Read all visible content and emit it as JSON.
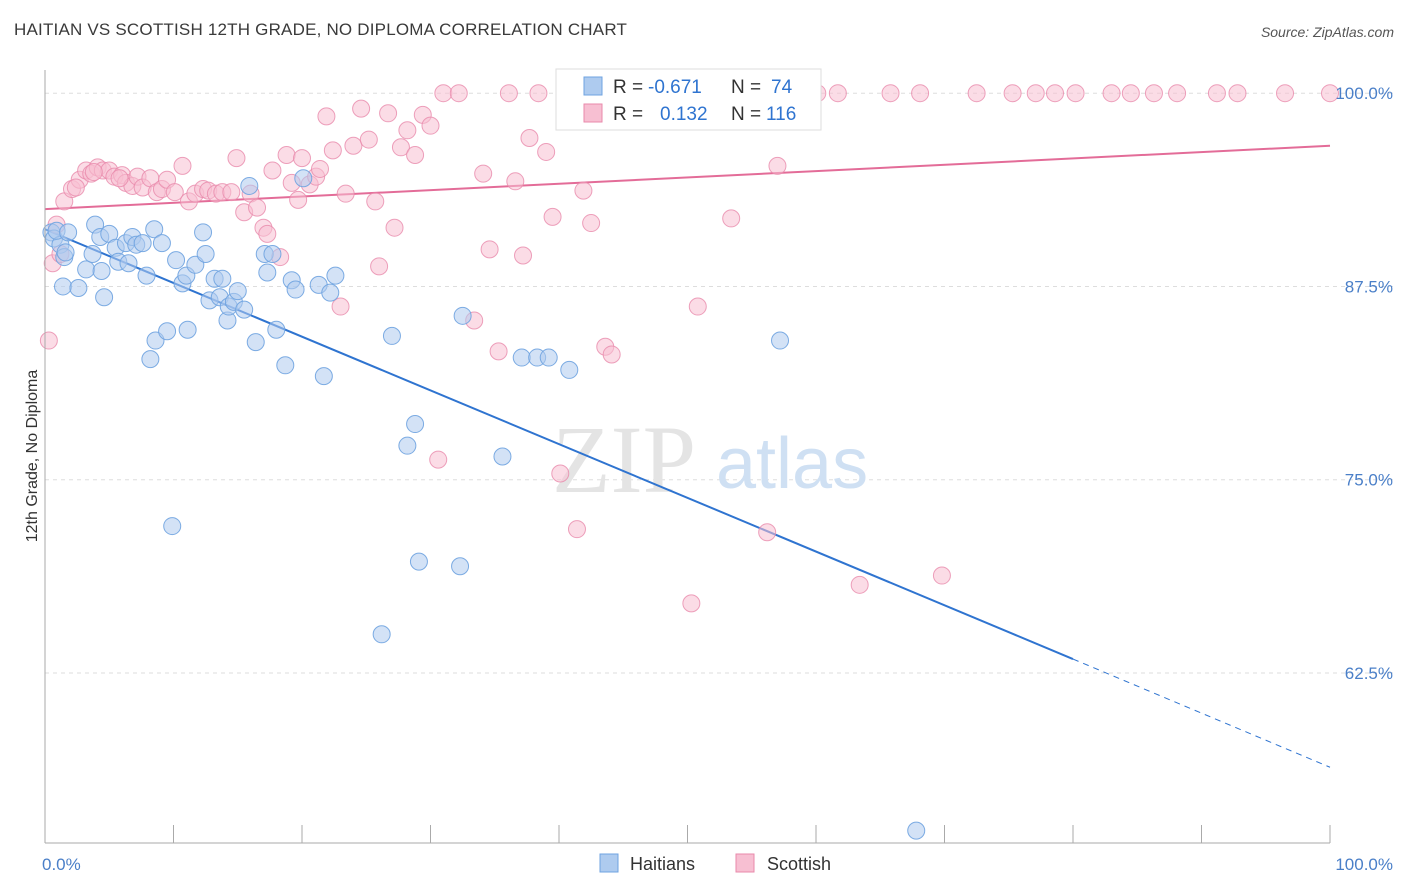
{
  "title": "HAITIAN VS SCOTTISH 12TH GRADE, NO DIPLOMA CORRELATION CHART",
  "source": "Source: ZipAtlas.com",
  "watermark": {
    "zip": "ZIP",
    "atlas": "atlas"
  },
  "colors": {
    "haitians": "#6fa3e0",
    "haitians_fill": "#aecbef",
    "haitians_line": "#2f74d0",
    "scottish": "#e98aab",
    "scottish_fill": "#f7bfd2",
    "scottish_line": "#e36c98",
    "tick": "#4a7fc8",
    "grid": "#dddddd"
  },
  "stats": {
    "haitians": {
      "r_label": "R =",
      "r_value": "-0.671",
      "n_label": "N =",
      "n_value": "74"
    },
    "scottish": {
      "r_label": "R =",
      "r_value": "0.132",
      "n_label": "N =",
      "n_value": "116"
    }
  },
  "chart_data": {
    "type": "scatter",
    "xlabel": "",
    "ylabel": "12th Grade, No Diploma",
    "xlim": [
      0,
      100
    ],
    "ylim": [
      51.5,
      101.5
    ],
    "x_tick_labels": [
      "0.0%",
      "100.0%"
    ],
    "y_ticks": [
      100.0,
      87.5,
      75.0,
      62.5
    ],
    "y_tick_labels": [
      "100.0%",
      "87.5%",
      "75.0%",
      "62.5%"
    ],
    "grid": true,
    "legend_position": "bottom",
    "series": [
      {
        "name": "Haitians",
        "trend": {
          "x0": 0.0,
          "y0": 91.2,
          "x1": 80.0,
          "y1": 63.4,
          "dashed_to_x": 100.0,
          "dashed_to_y": 56.4
        },
        "points": [
          [
            0.5,
            91.0
          ],
          [
            0.7,
            90.6
          ],
          [
            1.2,
            90.2
          ],
          [
            1.5,
            89.4
          ],
          [
            1.6,
            89.7
          ],
          [
            1.4,
            87.5
          ],
          [
            2.6,
            87.4
          ],
          [
            3.2,
            88.6
          ],
          [
            3.7,
            89.6
          ],
          [
            3.9,
            91.5
          ],
          [
            4.3,
            90.7
          ],
          [
            4.4,
            88.5
          ],
          [
            4.6,
            86.8
          ],
          [
            5.0,
            90.9
          ],
          [
            5.5,
            90.0
          ],
          [
            5.7,
            89.1
          ],
          [
            6.3,
            90.3
          ],
          [
            6.5,
            89.0
          ],
          [
            6.8,
            90.7
          ],
          [
            7.1,
            90.2
          ],
          [
            7.6,
            90.3
          ],
          [
            7.9,
            88.2
          ],
          [
            8.5,
            91.2
          ],
          [
            8.6,
            84.0
          ],
          [
            9.1,
            90.3
          ],
          [
            9.5,
            84.6
          ],
          [
            10.2,
            89.2
          ],
          [
            10.7,
            87.7
          ],
          [
            11.0,
            88.2
          ],
          [
            11.1,
            84.7
          ],
          [
            11.7,
            88.9
          ],
          [
            12.3,
            91.0
          ],
          [
            12.5,
            89.6
          ],
          [
            12.8,
            86.6
          ],
          [
            13.2,
            88.0
          ],
          [
            13.6,
            86.8
          ],
          [
            13.8,
            88.0
          ],
          [
            14.2,
            85.3
          ],
          [
            14.3,
            86.2
          ],
          [
            14.7,
            86.5
          ],
          [
            15.0,
            87.2
          ],
          [
            15.5,
            86.0
          ],
          [
            15.9,
            94.0
          ],
          [
            16.4,
            83.9
          ],
          [
            17.1,
            89.6
          ],
          [
            17.3,
            88.4
          ],
          [
            17.7,
            89.6
          ],
          [
            18.0,
            84.7
          ],
          [
            18.7,
            82.4
          ],
          [
            19.2,
            87.9
          ],
          [
            19.5,
            87.3
          ],
          [
            20.1,
            94.5
          ],
          [
            21.3,
            87.6
          ],
          [
            21.7,
            81.7
          ],
          [
            22.2,
            87.1
          ],
          [
            22.6,
            88.2
          ],
          [
            26.2,
            65.0
          ],
          [
            27.0,
            84.3
          ],
          [
            28.2,
            77.2
          ],
          [
            28.8,
            78.6
          ],
          [
            29.1,
            69.7
          ],
          [
            32.3,
            69.4
          ],
          [
            32.5,
            85.6
          ],
          [
            35.6,
            76.5
          ],
          [
            37.1,
            82.9
          ],
          [
            38.3,
            82.9
          ],
          [
            39.2,
            82.9
          ],
          [
            40.8,
            82.1
          ],
          [
            57.2,
            84.0
          ],
          [
            67.8,
            52.3
          ],
          [
            9.9,
            72.0
          ],
          [
            8.2,
            82.8
          ],
          [
            0.9,
            91.1
          ],
          [
            1.8,
            91.0
          ]
        ]
      },
      {
        "name": "Scottish",
        "trend": {
          "x0": 0.0,
          "y0": 92.5,
          "x1": 100.0,
          "y1": 96.6
        },
        "points": [
          [
            0.3,
            84.0
          ],
          [
            0.6,
            89.0
          ],
          [
            0.9,
            91.5
          ],
          [
            1.5,
            93.0
          ],
          [
            2.1,
            93.8
          ],
          [
            2.7,
            94.4
          ],
          [
            3.2,
            95.0
          ],
          [
            3.6,
            94.8
          ],
          [
            4.1,
            95.2
          ],
          [
            4.5,
            95.0
          ],
          [
            5.0,
            95.0
          ],
          [
            5.4,
            94.6
          ],
          [
            6.0,
            94.7
          ],
          [
            6.3,
            94.2
          ],
          [
            6.8,
            94.0
          ],
          [
            7.2,
            94.6
          ],
          [
            7.6,
            93.9
          ],
          [
            8.2,
            94.5
          ],
          [
            8.7,
            93.6
          ],
          [
            9.1,
            93.8
          ],
          [
            9.5,
            94.4
          ],
          [
            10.1,
            93.6
          ],
          [
            10.7,
            95.3
          ],
          [
            11.2,
            93.0
          ],
          [
            11.7,
            93.5
          ],
          [
            12.3,
            93.8
          ],
          [
            12.7,
            93.7
          ],
          [
            13.3,
            93.5
          ],
          [
            13.8,
            93.6
          ],
          [
            14.5,
            93.6
          ],
          [
            14.9,
            95.8
          ],
          [
            15.5,
            92.3
          ],
          [
            16.0,
            93.5
          ],
          [
            16.5,
            92.6
          ],
          [
            17.0,
            91.3
          ],
          [
            17.3,
            90.9
          ],
          [
            17.7,
            95.0
          ],
          [
            18.3,
            89.4
          ],
          [
            18.8,
            96.0
          ],
          [
            19.2,
            94.2
          ],
          [
            19.7,
            93.1
          ],
          [
            20.0,
            95.8
          ],
          [
            20.6,
            94.1
          ],
          [
            21.1,
            94.6
          ],
          [
            21.4,
            95.1
          ],
          [
            21.9,
            98.5
          ],
          [
            22.4,
            96.3
          ],
          [
            23.0,
            86.2
          ],
          [
            23.4,
            93.5
          ],
          [
            24.0,
            96.6
          ],
          [
            24.6,
            99.0
          ],
          [
            25.2,
            97.0
          ],
          [
            25.7,
            93.0
          ],
          [
            26.0,
            88.8
          ],
          [
            26.7,
            98.7
          ],
          [
            27.2,
            91.3
          ],
          [
            27.7,
            96.5
          ],
          [
            28.2,
            97.6
          ],
          [
            28.8,
            96.0
          ],
          [
            29.4,
            98.6
          ],
          [
            30.0,
            97.9
          ],
          [
            30.6,
            76.3
          ],
          [
            31.0,
            100.0
          ],
          [
            32.2,
            100.0
          ],
          [
            33.4,
            85.3
          ],
          [
            34.1,
            94.8
          ],
          [
            34.6,
            89.9
          ],
          [
            35.3,
            83.3
          ],
          [
            36.1,
            100.0
          ],
          [
            36.6,
            94.3
          ],
          [
            37.2,
            89.5
          ],
          [
            37.7,
            97.1
          ],
          [
            38.4,
            100.0
          ],
          [
            39.0,
            96.2
          ],
          [
            39.5,
            92.0
          ],
          [
            40.1,
            75.4
          ],
          [
            40.8,
            100.0
          ],
          [
            41.4,
            71.8
          ],
          [
            41.9,
            93.7
          ],
          [
            42.5,
            91.6
          ],
          [
            43.0,
            100.0
          ],
          [
            43.6,
            83.6
          ],
          [
            44.1,
            83.1
          ],
          [
            45.0,
            100.0
          ],
          [
            46.2,
            100.0
          ],
          [
            48.1,
            100.0
          ],
          [
            50.3,
            67.0
          ],
          [
            50.8,
            86.2
          ],
          [
            51.8,
            100.0
          ],
          [
            53.4,
            91.9
          ],
          [
            55.2,
            100.0
          ],
          [
            56.2,
            71.6
          ],
          [
            57.0,
            95.3
          ],
          [
            60.1,
            100.0
          ],
          [
            61.7,
            100.0
          ],
          [
            63.4,
            68.2
          ],
          [
            65.8,
            100.0
          ],
          [
            68.1,
            100.0
          ],
          [
            69.8,
            68.8
          ],
          [
            72.5,
            100.0
          ],
          [
            75.3,
            100.0
          ],
          [
            77.1,
            100.0
          ],
          [
            78.6,
            100.0
          ],
          [
            80.2,
            100.0
          ],
          [
            83.0,
            100.0
          ],
          [
            84.5,
            100.0
          ],
          [
            86.3,
            100.0
          ],
          [
            88.1,
            100.0
          ],
          [
            91.2,
            100.0
          ],
          [
            92.8,
            100.0
          ],
          [
            96.5,
            100.0
          ],
          [
            100.0,
            100.0
          ],
          [
            1.2,
            89.6
          ],
          [
            2.4,
            93.9
          ],
          [
            3.8,
            94.9
          ],
          [
            5.8,
            94.5
          ]
        ]
      }
    ]
  },
  "legend": {
    "haitians": "Haitians",
    "scottish": "Scottish"
  }
}
